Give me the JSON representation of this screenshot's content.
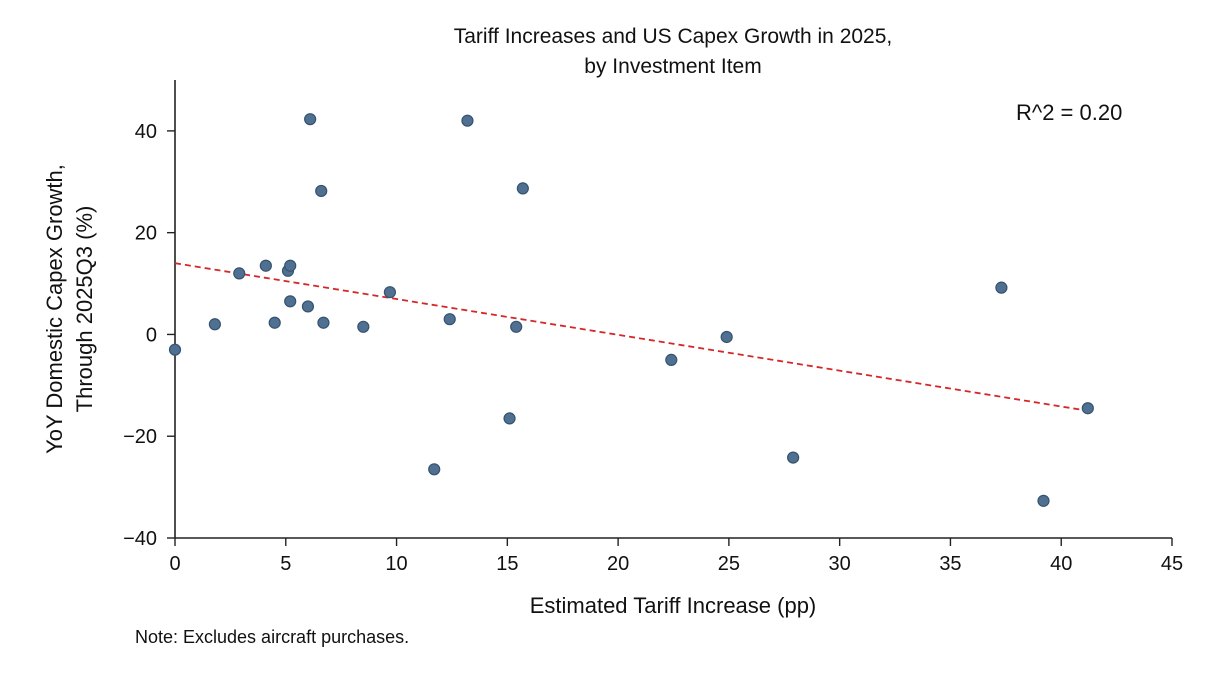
{
  "chart_data": {
    "type": "scatter",
    "title": [
      "Tariff Increases and US Capex Growth in 2025,",
      "by Investment Item"
    ],
    "xlabel": "Estimated Tariff Increase (pp)",
    "ylabel": [
      "YoY Domestic Capex Growth,",
      "Through 2025Q3 (%)"
    ],
    "xlim": [
      0,
      45
    ],
    "ylim": [
      -40,
      50
    ],
    "x_ticks": [
      0,
      5,
      10,
      15,
      20,
      25,
      30,
      35,
      40,
      45
    ],
    "y_ticks": [
      -40,
      -20,
      0,
      20,
      40
    ],
    "x_tick_labels": [
      "0",
      "5",
      "10",
      "15",
      "20",
      "25",
      "30",
      "35",
      "40",
      "45"
    ],
    "y_tick_labels": [
      "−40",
      "−20",
      "0",
      "20",
      "40"
    ],
    "annotation": "R^2 =  0.20",
    "note": "Note: Excludes aircraft purchases.",
    "colors": {
      "point": "#4f7091",
      "point_edge": "#36526f",
      "trendline": "#d62728",
      "axis": "#222222"
    },
    "trendline": {
      "x": [
        0,
        41.2
      ],
      "y": [
        14.0,
        -15.0
      ],
      "style": "dashed"
    },
    "points": [
      {
        "x": 0.0,
        "y": -3.0
      },
      {
        "x": 1.8,
        "y": 2.0
      },
      {
        "x": 2.9,
        "y": 12.0
      },
      {
        "x": 4.1,
        "y": 13.5
      },
      {
        "x": 4.5,
        "y": 2.3
      },
      {
        "x": 5.1,
        "y": 12.5
      },
      {
        "x": 5.2,
        "y": 13.5
      },
      {
        "x": 5.2,
        "y": 6.5
      },
      {
        "x": 6.0,
        "y": 5.5
      },
      {
        "x": 6.1,
        "y": 42.3
      },
      {
        "x": 6.6,
        "y": 28.2
      },
      {
        "x": 6.7,
        "y": 2.3
      },
      {
        "x": 8.5,
        "y": 1.5
      },
      {
        "x": 9.7,
        "y": 8.3
      },
      {
        "x": 11.7,
        "y": -26.5
      },
      {
        "x": 12.4,
        "y": 3.0
      },
      {
        "x": 13.2,
        "y": 42.0
      },
      {
        "x": 15.1,
        "y": -16.5
      },
      {
        "x": 15.4,
        "y": 1.5
      },
      {
        "x": 15.7,
        "y": 28.7
      },
      {
        "x": 22.4,
        "y": -5.0
      },
      {
        "x": 24.9,
        "y": -0.5
      },
      {
        "x": 27.9,
        "y": -24.2
      },
      {
        "x": 37.3,
        "y": 9.2
      },
      {
        "x": 39.2,
        "y": -32.7
      },
      {
        "x": 41.2,
        "y": -14.5
      }
    ]
  }
}
